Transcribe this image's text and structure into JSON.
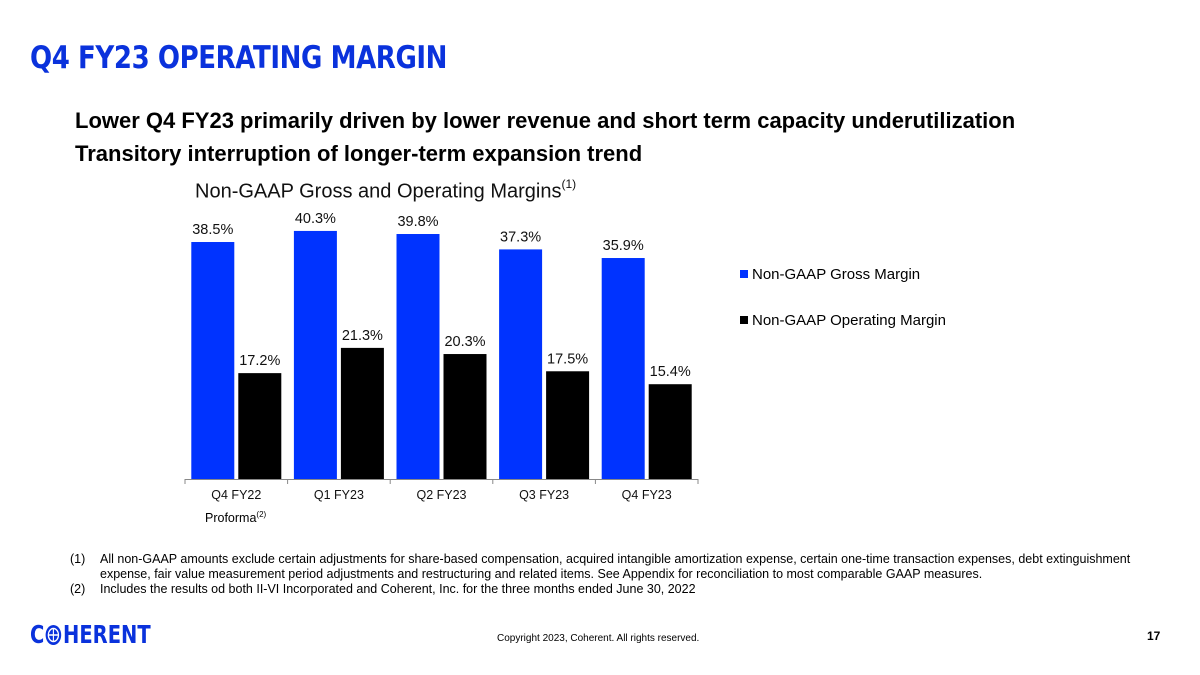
{
  "slide": {
    "title": "Q4 FY23 OPERATING MARGIN",
    "bullets": [
      "Lower Q4 FY23 primarily driven by lower revenue and short term capacity underutilization",
      "Transitory interruption of longer-term expansion trend"
    ],
    "proforma_label": "Proforma",
    "proforma_sup": "(2)",
    "footnotes": [
      {
        "num": "(1)",
        "text": "All non-GAAP amounts exclude certain adjustments for share-based compensation, acquired intangible amortization expense, certain one-time transaction expenses, debt extinguishment expense, fair value measurement period adjustments and restructuring and related items. See Appendix for reconciliation to most comparable GAAP measures."
      },
      {
        "num": "(2)",
        "text": "Includes the results od both II-VI Incorporated and Coherent, Inc. for the three months ended June 30, 2022"
      }
    ],
    "logo_left": "C",
    "logo_right": "HERENT",
    "copyright": "Copyright 2023, Coherent. All rights reserved.",
    "page_number": "17"
  },
  "colors": {
    "accent": "#0a32dc",
    "gross_bar": "#0033ff",
    "operating_bar": "#000000"
  },
  "chart_data": {
    "type": "bar",
    "title": "Non-GAAP Gross and Operating Margins",
    "title_sup": "(1)",
    "categories": [
      "Q4 FY22",
      "Q1 FY23",
      "Q2 FY23",
      "Q3 FY23",
      "Q4 FY23"
    ],
    "series": [
      {
        "name": "Non-GAAP Gross Margin",
        "values": [
          38.5,
          40.3,
          39.8,
          37.3,
          35.9
        ],
        "labels": [
          "38.5%",
          "40.3%",
          "39.8%",
          "37.3%",
          "35.9%"
        ],
        "color": "#0033ff"
      },
      {
        "name": "Non-GAAP Operating Margin",
        "values": [
          17.2,
          21.3,
          20.3,
          17.5,
          15.4
        ],
        "labels": [
          "17.2%",
          "21.3%",
          "20.3%",
          "17.5%",
          "15.4%"
        ],
        "color": "#000000"
      }
    ],
    "xlabel": "",
    "ylabel": "",
    "ylim": [
      0,
      45
    ],
    "grid": false,
    "legend": "right"
  }
}
